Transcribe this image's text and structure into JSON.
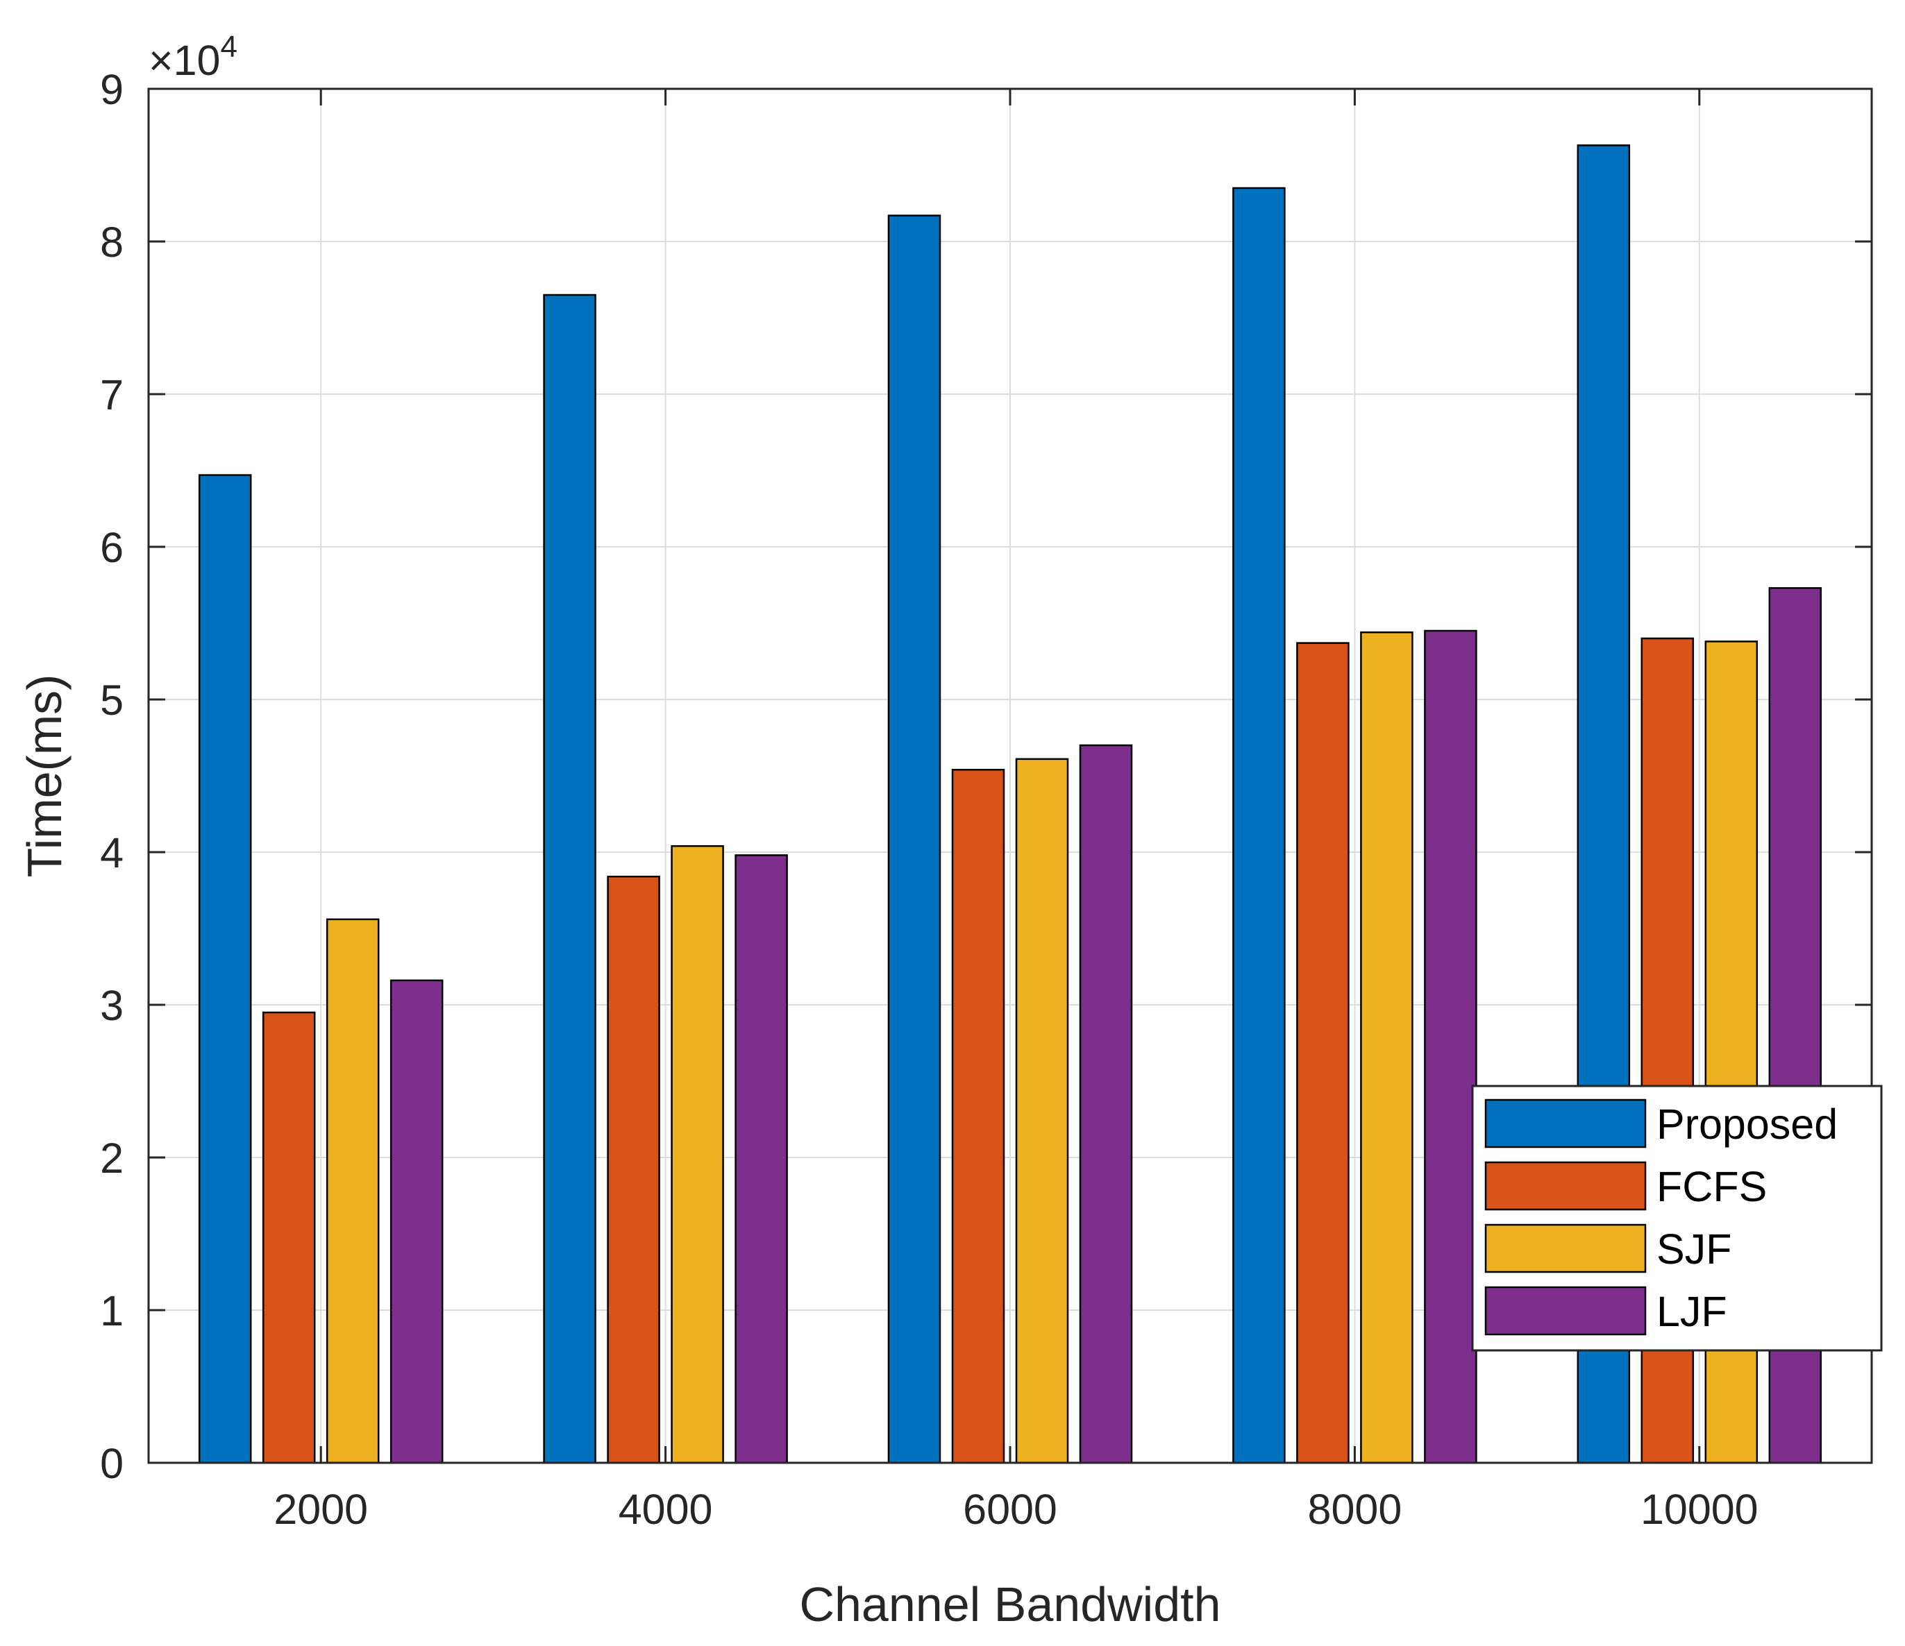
{
  "chart_data": {
    "type": "bar",
    "title": "",
    "xlabel": "Channel Bandwidth",
    "ylabel": "Time(ms)",
    "y_exponent_label": "×10",
    "y_exponent_power": "4",
    "categories": [
      "2000",
      "4000",
      "6000",
      "8000",
      "10000"
    ],
    "ylim": [
      0,
      9
    ],
    "yticks": [
      0,
      1,
      2,
      3,
      4,
      5,
      6,
      7,
      8,
      9
    ],
    "ytick_labels": [
      "0",
      "1",
      "2",
      "3",
      "4",
      "5",
      "6",
      "7",
      "8",
      "9"
    ],
    "grid": true,
    "legend_position": "bottom-right",
    "series": [
      {
        "name": "Proposed",
        "color": "#0072BD",
        "values": [
          6.47,
          7.65,
          8.17,
          8.35,
          8.63
        ]
      },
      {
        "name": "FCFS",
        "color": "#D95319",
        "values": [
          2.95,
          3.84,
          4.54,
          5.37,
          5.4
        ]
      },
      {
        "name": "SJF",
        "color": "#EDB120",
        "values": [
          3.56,
          4.04,
          4.61,
          5.44,
          5.38
        ]
      },
      {
        "name": "LJF",
        "color": "#7E2F8E",
        "values": [
          3.16,
          3.98,
          4.7,
          5.45,
          5.73
        ]
      }
    ]
  }
}
